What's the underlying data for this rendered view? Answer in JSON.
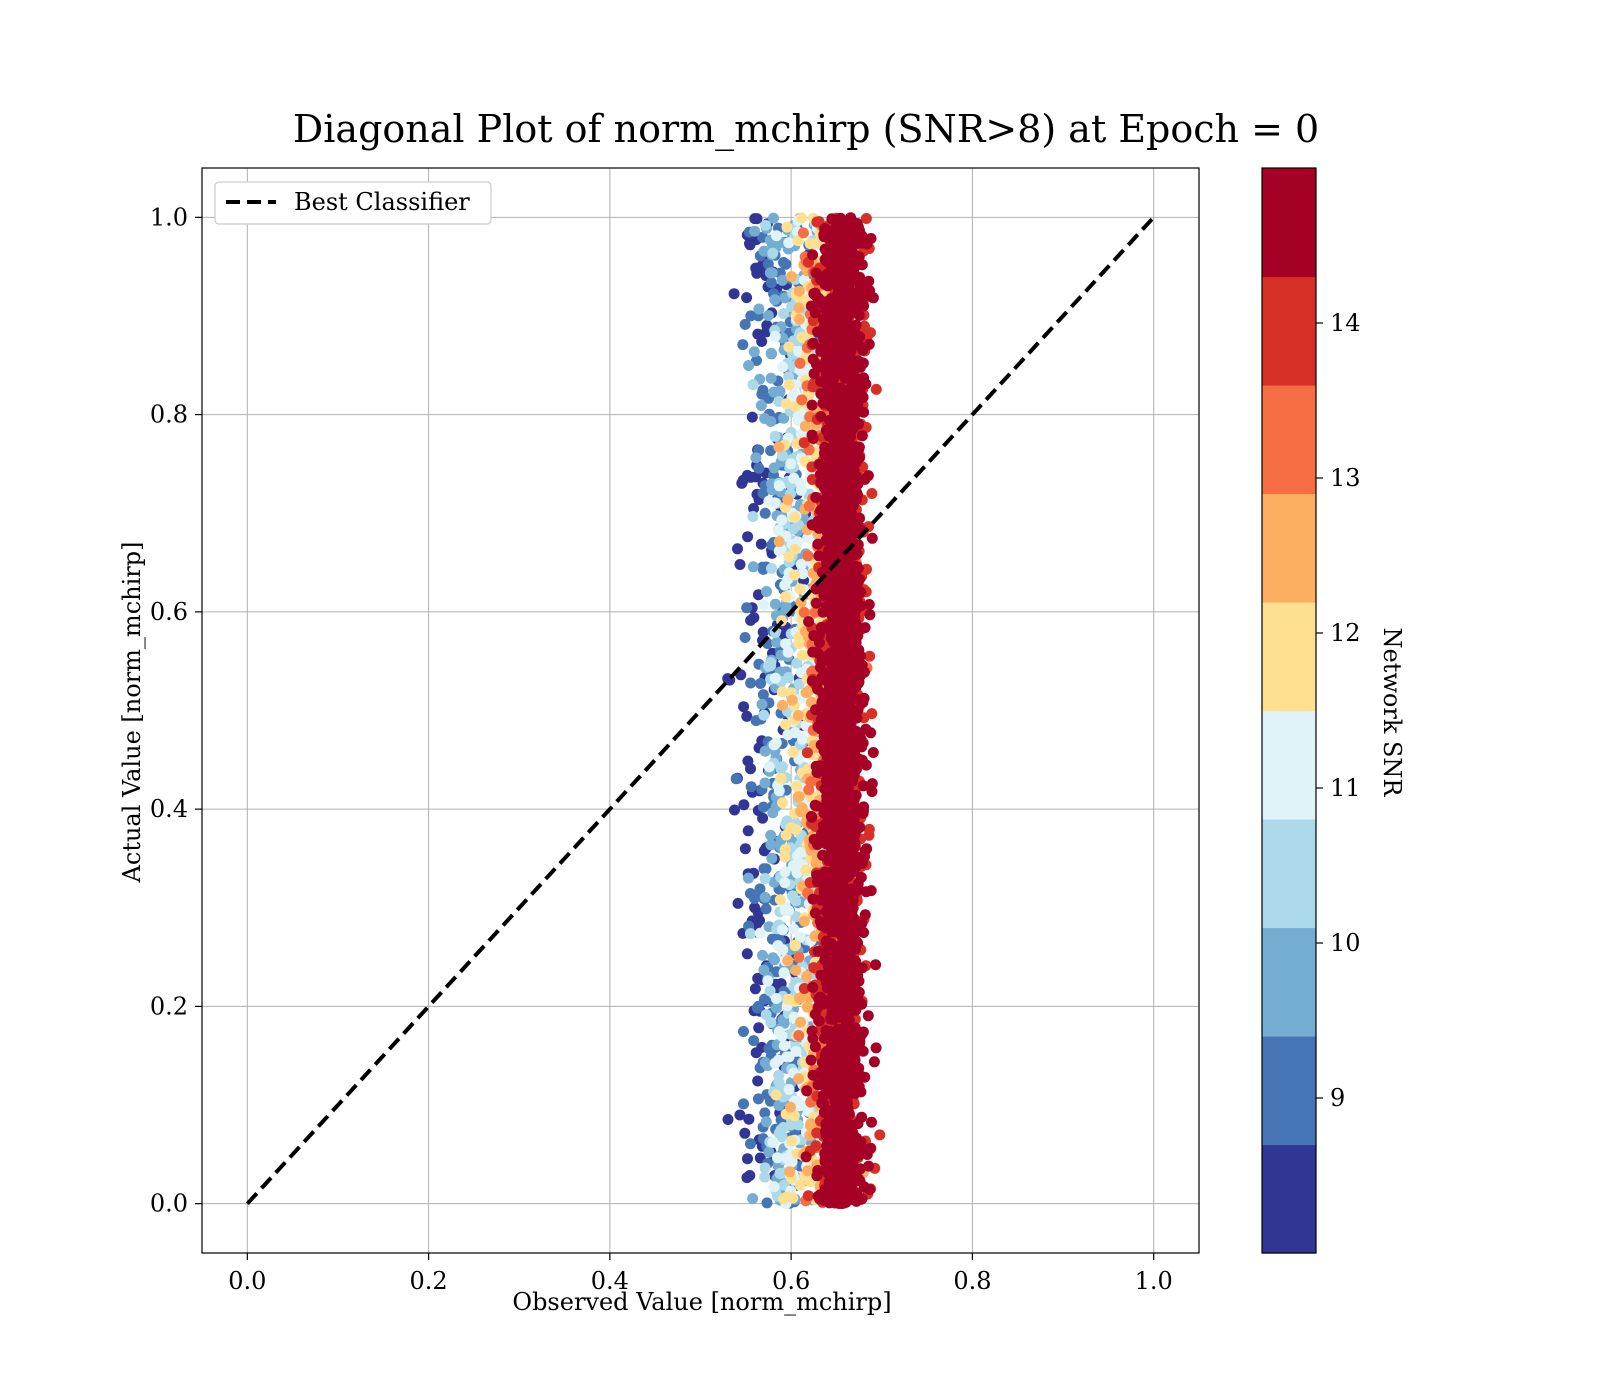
{
  "chart_data": {
    "type": "scatter",
    "title": "Diagonal Plot of norm_mchirp (SNR>8) at Epoch = 0",
    "xlabel": "Observed Value [norm_mchirp]",
    "ylabel": "Actual Value [norm_mchirp]",
    "xlim": [
      -0.05,
      1.05
    ],
    "ylim": [
      -0.05,
      1.05
    ],
    "xticks": [
      "0.0",
      "0.2",
      "0.4",
      "0.6",
      "0.8",
      "1.0"
    ],
    "yticks": [
      "0.0",
      "0.2",
      "0.4",
      "0.6",
      "0.8",
      "1.0"
    ],
    "grid": true,
    "legend": {
      "position": "top-left",
      "entries": [
        "Best Classifier"
      ]
    },
    "reference_line": {
      "name": "Best Classifier",
      "style": "dashed",
      "color": "#000000",
      "x": [
        0.0,
        1.0
      ],
      "y": [
        0.0,
        1.0
      ]
    },
    "scatter_cloud": {
      "x_range": [
        0.53,
        0.7
      ],
      "y_range": [
        0.0,
        1.0
      ],
      "high_snr_x_center": 0.655,
      "low_snr_x_center": 0.57,
      "point_count_estimate": 5000
    },
    "colorbar": {
      "label": "Network SNR",
      "range": [
        8,
        15
      ],
      "ticks": [
        "9",
        "10",
        "11",
        "12",
        "13",
        "14"
      ],
      "colors": [
        "#313695",
        "#4575b4",
        "#74add1",
        "#abd9e9",
        "#e0f3f8",
        "#fee090",
        "#fdae61",
        "#f46d43",
        "#d73027",
        "#a50026"
      ]
    }
  }
}
